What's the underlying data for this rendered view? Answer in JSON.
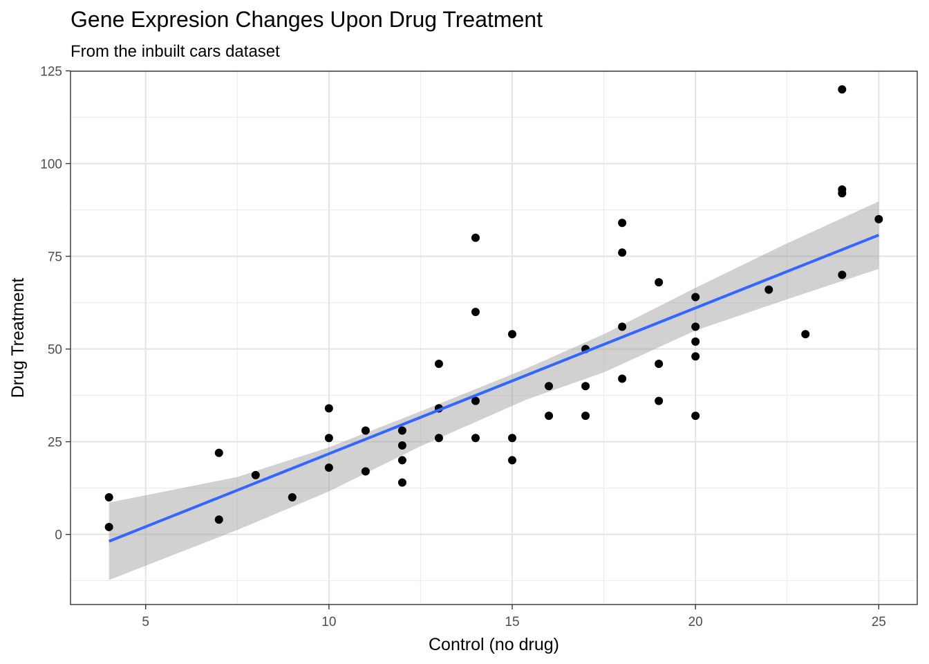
{
  "chart_data": {
    "type": "scatter",
    "title": "Gene Expresion Changes Upon Drug Treatment",
    "subtitle": "From the inbuilt cars dataset",
    "xlabel": "Control (no drug)",
    "ylabel": "Drug Treatment",
    "xlim": [
      2.95,
      26.05
    ],
    "ylim": [
      -18.9,
      124.9
    ],
    "x_ticks": [
      5,
      10,
      15,
      20,
      25
    ],
    "x_tick_labels": [
      "5",
      "10",
      "15",
      "20",
      "25"
    ],
    "y_ticks": [
      0,
      25,
      50,
      75,
      100,
      125
    ],
    "y_tick_labels": [
      "0",
      "25",
      "50",
      "75",
      "100",
      "125"
    ],
    "grid": true,
    "points": [
      {
        "x": 4,
        "y": 2
      },
      {
        "x": 4,
        "y": 10
      },
      {
        "x": 7,
        "y": 4
      },
      {
        "x": 7,
        "y": 22
      },
      {
        "x": 8,
        "y": 16
      },
      {
        "x": 9,
        "y": 10
      },
      {
        "x": 10,
        "y": 18
      },
      {
        "x": 10,
        "y": 26
      },
      {
        "x": 10,
        "y": 34
      },
      {
        "x": 11,
        "y": 17
      },
      {
        "x": 11,
        "y": 28
      },
      {
        "x": 12,
        "y": 14
      },
      {
        "x": 12,
        "y": 20
      },
      {
        "x": 12,
        "y": 24
      },
      {
        "x": 12,
        "y": 28
      },
      {
        "x": 13,
        "y": 26
      },
      {
        "x": 13,
        "y": 34
      },
      {
        "x": 13,
        "y": 34
      },
      {
        "x": 13,
        "y": 46
      },
      {
        "x": 14,
        "y": 26
      },
      {
        "x": 14,
        "y": 36
      },
      {
        "x": 14,
        "y": 60
      },
      {
        "x": 14,
        "y": 80
      },
      {
        "x": 15,
        "y": 20
      },
      {
        "x": 15,
        "y": 26
      },
      {
        "x": 15,
        "y": 54
      },
      {
        "x": 16,
        "y": 32
      },
      {
        "x": 16,
        "y": 40
      },
      {
        "x": 17,
        "y": 32
      },
      {
        "x": 17,
        "y": 40
      },
      {
        "x": 17,
        "y": 50
      },
      {
        "x": 18,
        "y": 42
      },
      {
        "x": 18,
        "y": 56
      },
      {
        "x": 18,
        "y": 76
      },
      {
        "x": 18,
        "y": 84
      },
      {
        "x": 19,
        "y": 36
      },
      {
        "x": 19,
        "y": 46
      },
      {
        "x": 19,
        "y": 68
      },
      {
        "x": 20,
        "y": 32
      },
      {
        "x": 20,
        "y": 48
      },
      {
        "x": 20,
        "y": 52
      },
      {
        "x": 20,
        "y": 56
      },
      {
        "x": 20,
        "y": 64
      },
      {
        "x": 22,
        "y": 66
      },
      {
        "x": 23,
        "y": 54
      },
      {
        "x": 24,
        "y": 70
      },
      {
        "x": 24,
        "y": 92
      },
      {
        "x": 24,
        "y": 93
      },
      {
        "x": 24,
        "y": 120
      },
      {
        "x": 25,
        "y": 85
      }
    ],
    "fit_line": {
      "method": "linear",
      "color": "#3366FF",
      "x": [
        4,
        25
      ],
      "y": [
        -1.85,
        80.73
      ],
      "confidence_band": {
        "x": [
          4,
          7.5,
          10,
          12.5,
          15.4,
          17.5,
          20,
          22.5,
          25
        ],
        "upper": [
          8.6,
          15.5,
          23.5,
          33.2,
          44.8,
          54.0,
          66.5,
          78.5,
          89.8
        ],
        "lower": [
          -12.3,
          1.2,
          11.6,
          23.8,
          36.4,
          43.7,
          55.0,
          63.4,
          71.6
        ],
        "color": "#999999"
      }
    }
  }
}
